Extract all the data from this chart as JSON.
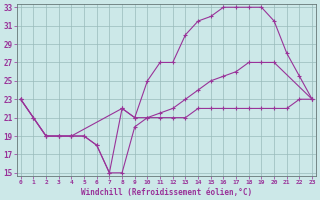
{
  "xlabel": "Windchill (Refroidissement éolien,°C)",
  "background_color": "#cce8e8",
  "grid_color": "#99bbbb",
  "line_color": "#993399",
  "xmin": 0,
  "xmax": 23,
  "ymin": 15,
  "ymax": 33,
  "yticks": [
    15,
    17,
    19,
    21,
    23,
    25,
    27,
    29,
    31,
    33
  ],
  "xticks": [
    0,
    1,
    2,
    3,
    4,
    5,
    6,
    7,
    8,
    9,
    10,
    11,
    12,
    13,
    14,
    15,
    16,
    17,
    18,
    19,
    20,
    21,
    22,
    23
  ],
  "line1_x": [
    0,
    1,
    2,
    3,
    4,
    5,
    6,
    7,
    8,
    9,
    10,
    11,
    12,
    13,
    14,
    15,
    16,
    17,
    18,
    19,
    20,
    21,
    22,
    23
  ],
  "line1_y": [
    23,
    21,
    19,
    19,
    19,
    19,
    18,
    15,
    15,
    20,
    21,
    21,
    21,
    21,
    22,
    22,
    22,
    22,
    22,
    22,
    22,
    22,
    23,
    23
  ],
  "line2_x": [
    0,
    1,
    2,
    3,
    4,
    5,
    6,
    7,
    8,
    9,
    10,
    11,
    12,
    13,
    14,
    15,
    16,
    17,
    18,
    19,
    20,
    21,
    22,
    23
  ],
  "line2_y": [
    23,
    21,
    19,
    19,
    19,
    19,
    18,
    15,
    22,
    21,
    25,
    27,
    27,
    30,
    31.5,
    32,
    33,
    33,
    33,
    33,
    31.5,
    28,
    25.5,
    23
  ],
  "line3_x": [
    0,
    2,
    3,
    4,
    8,
    9,
    10,
    11,
    12,
    13,
    14,
    15,
    16,
    17,
    18,
    19,
    20,
    23
  ],
  "line3_y": [
    23,
    19,
    19,
    19,
    22,
    21,
    21,
    21.5,
    22,
    23,
    24,
    25,
    25.5,
    26,
    27,
    27,
    27,
    23
  ]
}
